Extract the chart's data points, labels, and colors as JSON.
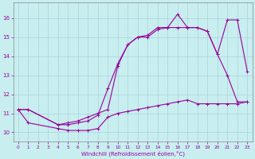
{
  "background_color": "#c8eef0",
  "grid_color": "#b0d8dc",
  "line_color": "#990099",
  "xlabel": "Windchill (Refroidissement éolien,°C)",
  "xlim": [
    -0.5,
    23.5
  ],
  "ylim": [
    9.5,
    16.8
  ],
  "yticks": [
    10,
    11,
    12,
    13,
    14,
    15,
    16
  ],
  "xticks": [
    0,
    1,
    2,
    3,
    4,
    5,
    6,
    7,
    8,
    9,
    10,
    11,
    12,
    13,
    14,
    15,
    16,
    17,
    18,
    19,
    20,
    21,
    22,
    23
  ],
  "line1_x": [
    0,
    1,
    4,
    5,
    6,
    7,
    8,
    9,
    10,
    11,
    12,
    13,
    14,
    15,
    16,
    17,
    18,
    19,
    20,
    21,
    22,
    23
  ],
  "line1_y": [
    11.2,
    10.5,
    10.2,
    10.1,
    10.1,
    10.1,
    10.2,
    10.8,
    11.0,
    11.1,
    11.2,
    11.3,
    11.4,
    11.5,
    11.6,
    11.7,
    11.5,
    11.5,
    11.5,
    11.5,
    11.5,
    11.6
  ],
  "line2_x": [
    0,
    1,
    4,
    5,
    6,
    7,
    8,
    9,
    10,
    11,
    12,
    13,
    14,
    15,
    16,
    17,
    18,
    19,
    20,
    21,
    22,
    23
  ],
  "line2_y": [
    11.2,
    11.2,
    10.4,
    10.4,
    10.5,
    10.6,
    10.9,
    12.3,
    13.6,
    14.6,
    15.0,
    15.0,
    15.4,
    15.5,
    16.2,
    15.5,
    15.5,
    15.3,
    14.1,
    15.9,
    15.9,
    13.2
  ],
  "line3_x": [
    0,
    1,
    4,
    5,
    6,
    7,
    8,
    9,
    10,
    11,
    12,
    13,
    14,
    15,
    16,
    17,
    18,
    19,
    20,
    21,
    22,
    23
  ],
  "line3_y": [
    11.2,
    11.2,
    10.4,
    10.5,
    10.6,
    10.8,
    11.0,
    11.2,
    13.5,
    14.6,
    15.0,
    15.1,
    15.5,
    15.5,
    15.5,
    15.5,
    15.5,
    15.3,
    14.1,
    13.0,
    11.6,
    11.6
  ]
}
